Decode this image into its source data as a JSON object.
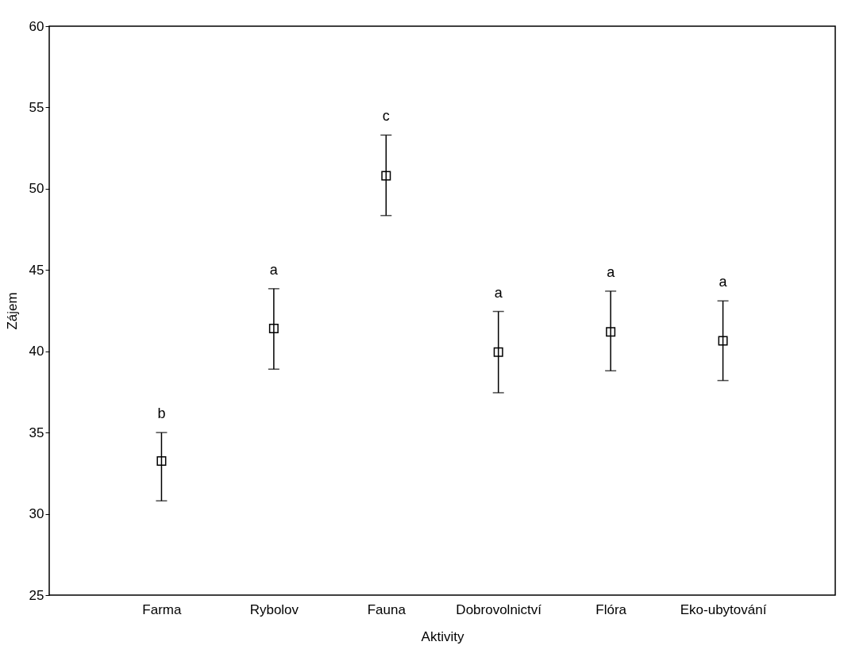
{
  "chart_data": {
    "type": "scatter",
    "xlabel": "Aktivity",
    "ylabel": "Zájem",
    "categories": [
      "Farma",
      "Rybolov",
      "Fauna",
      "Dobrovolnictví",
      "Flóra",
      "Eko-ubytování"
    ],
    "values": [
      33.25,
      41.4,
      50.8,
      39.95,
      41.2,
      40.65
    ],
    "errors": [
      [
        30.8,
        35.0
      ],
      [
        38.9,
        43.85
      ],
      [
        48.35,
        53.3
      ],
      [
        37.45,
        42.45
      ],
      [
        38.8,
        43.7
      ],
      [
        38.2,
        43.1
      ]
    ],
    "color": "#000000",
    "marker": "square",
    "grid": false,
    "ylim": [
      25,
      60
    ],
    "yticks": [
      25,
      30,
      35,
      40,
      45,
      50,
      55,
      60
    ],
    "annotations": [
      "b",
      "a",
      "c",
      "a",
      "a",
      "a"
    ]
  }
}
